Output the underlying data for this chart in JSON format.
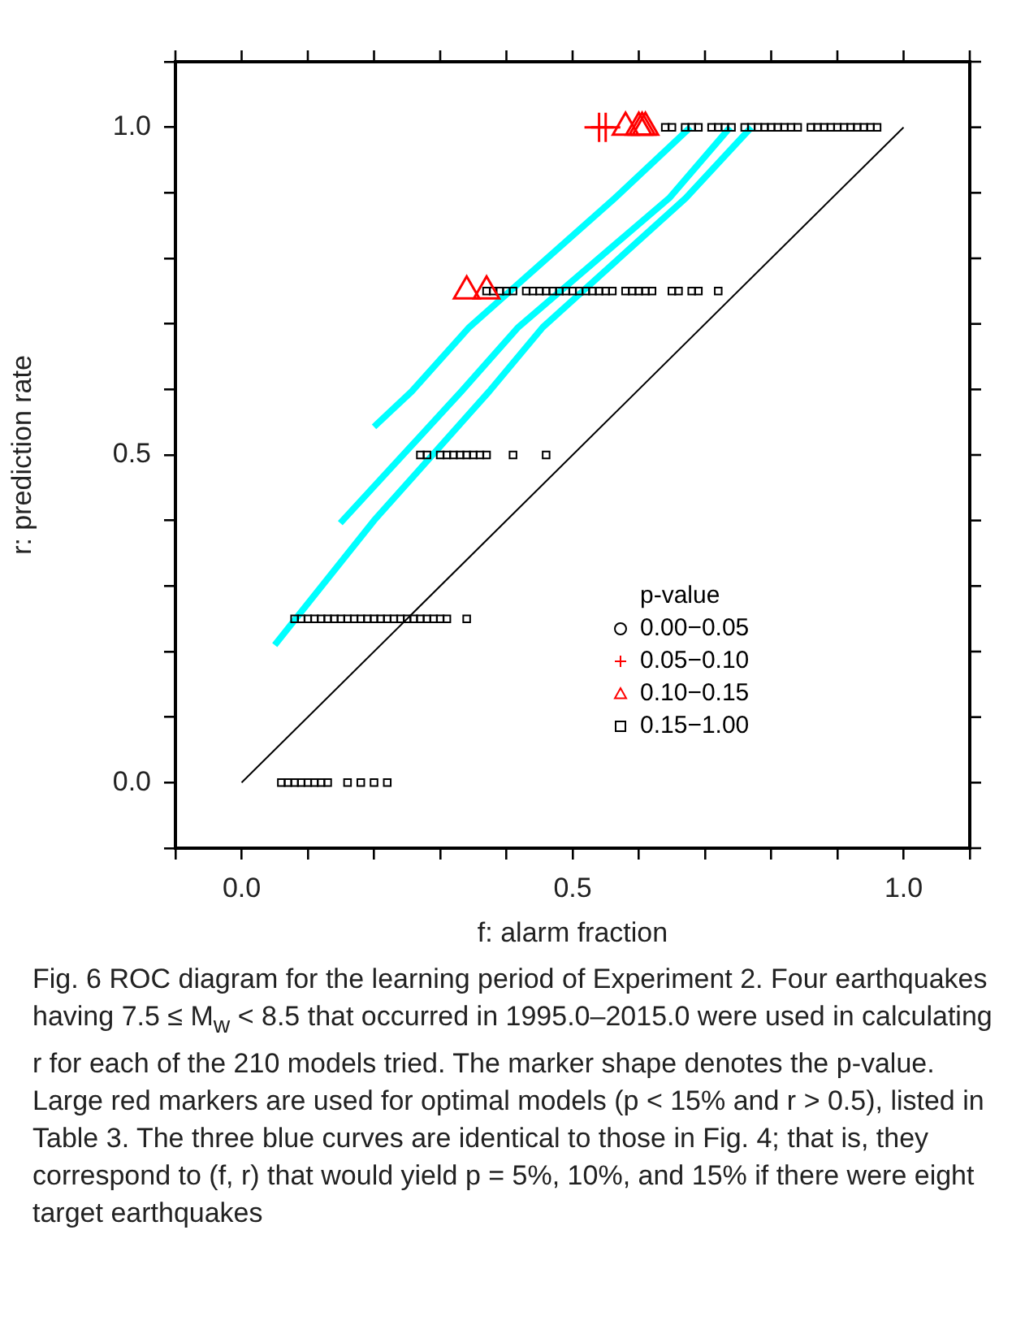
{
  "chart_data": {
    "type": "scatter",
    "xlabel": "f: alarm fraction",
    "ylabel": "r: prediction rate",
    "legend_title": "p-value",
    "legend": "bottom right",
    "xlim": [
      -0.1,
      1.1
    ],
    "ylim": [
      -0.1,
      1.1
    ],
    "xticks": [
      {
        "value": -0.1,
        "label": null
      },
      {
        "value": 0,
        "label": "0.0"
      },
      {
        "value": 0.1,
        "label": null
      },
      {
        "value": 0.2,
        "label": null
      },
      {
        "value": 0.3,
        "label": null
      },
      {
        "value": 0.4,
        "label": null
      },
      0.5,
      {
        "value": 0.6,
        "label": null
      },
      {
        "value": 0.7,
        "label": null
      },
      {
        "value": 0.8,
        "label": null
      },
      {
        "value": 0.9,
        "label": null
      },
      {
        "value": 1,
        "label": "1.0"
      },
      {
        "value": 1.1,
        "label": null
      }
    ],
    "yticks": [
      {
        "value": -0.1,
        "label": null
      },
      {
        "value": 0,
        "label": "0.0"
      },
      {
        "value": 0.1,
        "label": null
      },
      {
        "value": 0.2,
        "label": null
      },
      {
        "value": 0.3,
        "label": null
      },
      {
        "value": 0.4,
        "label": null
      },
      0.5,
      {
        "value": 0.6,
        "label": null
      },
      {
        "value": 0.7,
        "label": null
      },
      {
        "value": 0.8,
        "label": null
      },
      {
        "value": 0.9,
        "label": null
      },
      {
        "value": 1,
        "label": "1.0"
      },
      {
        "value": 1.1,
        "label": null
      }
    ],
    "series": [
      {
        "name": "0.00−0.05",
        "marker": "circle",
        "color": "#000000"
      },
      {
        "name": "0.05−0.10",
        "marker": "cross",
        "color": "#ff0000",
        "x": [
          0.54,
          0.55
        ],
        "values": [
          1.0,
          1.0
        ]
      },
      {
        "name": "0.10−0.15",
        "marker": "triangle",
        "color": "#ff0000",
        "x": [
          0.58,
          0.6,
          0.605,
          0.61,
          0.34,
          0.37
        ],
        "values": [
          1.0,
          1.0,
          1.0,
          1.0,
          0.75,
          0.75
        ]
      },
      {
        "name": "0.15−1.00",
        "marker": "square",
        "color": "#000000",
        "x": [
          0.64,
          0.65,
          0.67,
          0.68,
          0.69,
          0.71,
          0.72,
          0.73,
          0.74,
          0.76,
          0.77,
          0.78,
          0.79,
          0.8,
          0.81,
          0.82,
          0.83,
          0.84,
          0.86,
          0.87,
          0.88,
          0.89,
          0.9,
          0.91,
          0.92,
          0.93,
          0.94,
          0.95,
          0.96,
          0.37,
          0.38,
          0.39,
          0.4,
          0.41,
          0.43,
          0.44,
          0.45,
          0.46,
          0.47,
          0.48,
          0.49,
          0.5,
          0.51,
          0.52,
          0.53,
          0.54,
          0.55,
          0.56,
          0.58,
          0.59,
          0.6,
          0.61,
          0.62,
          0.65,
          0.66,
          0.68,
          0.69,
          0.72,
          0.27,
          0.28,
          0.3,
          0.31,
          0.32,
          0.33,
          0.34,
          0.35,
          0.36,
          0.37,
          0.41,
          0.46,
          0.08,
          0.09,
          0.1,
          0.11,
          0.12,
          0.13,
          0.14,
          0.15,
          0.16,
          0.17,
          0.18,
          0.19,
          0.2,
          0.21,
          0.22,
          0.23,
          0.24,
          0.25,
          0.26,
          0.27,
          0.28,
          0.29,
          0.3,
          0.31,
          0.34,
          0.06,
          0.07,
          0.08,
          0.09,
          0.1,
          0.11,
          0.12,
          0.13,
          0.16,
          0.18,
          0.2,
          0.22
        ],
        "values": [
          1,
          1,
          1,
          1,
          1,
          1,
          1,
          1,
          1,
          1,
          1,
          1,
          1,
          1,
          1,
          1,
          1,
          1,
          1,
          1,
          1,
          1,
          1,
          1,
          1,
          1,
          1,
          1,
          1,
          0.75,
          0.75,
          0.75,
          0.75,
          0.75,
          0.75,
          0.75,
          0.75,
          0.75,
          0.75,
          0.75,
          0.75,
          0.75,
          0.75,
          0.75,
          0.75,
          0.75,
          0.75,
          0.75,
          0.75,
          0.75,
          0.75,
          0.75,
          0.75,
          0.75,
          0.75,
          0.75,
          0.75,
          0.75,
          0.5,
          0.5,
          0.5,
          0.5,
          0.5,
          0.5,
          0.5,
          0.5,
          0.5,
          0.5,
          0.5,
          0.5,
          0.25,
          0.25,
          0.25,
          0.25,
          0.25,
          0.25,
          0.25,
          0.25,
          0.25,
          0.25,
          0.25,
          0.25,
          0.25,
          0.25,
          0.25,
          0.25,
          0.25,
          0.25,
          0.25,
          0.25,
          0.25,
          0.25,
          0.25,
          0.25,
          0.25,
          0,
          0,
          0,
          0,
          0,
          0,
          0,
          0,
          0,
          0,
          0,
          0
        ]
      },
      {
        "type": "line",
        "marker": "none",
        "color": "#00ffff",
        "x": [
          0.2,
          0.257,
          0.344,
          0.564,
          0.678
        ],
        "values": [
          0.543,
          0.597,
          0.695,
          0.892,
          1.0
        ]
      },
      {
        "type": "line",
        "marker": "none",
        "color": "#00ffff",
        "x": [
          0.149,
          0.332,
          0.418,
          0.646,
          0.738
        ],
        "values": [
          0.396,
          0.597,
          0.695,
          0.892,
          1.0
        ]
      },
      {
        "type": "line",
        "marker": "none",
        "color": "#00ffff",
        "x": [
          0.05,
          0.2,
          0.374,
          0.455,
          0.671,
          0.77
        ],
        "values": [
          0.21,
          0.4,
          0.597,
          0.695,
          0.892,
          1.0
        ]
      },
      {
        "type": "line",
        "marker": "none",
        "color": "#000000",
        "x": [
          0,
          1
        ],
        "values": [
          0,
          1
        ]
      }
    ],
    "annotations": [
      "Fig. 6 ROC diagram for the learning period of Experiment 2. Four earthquakes having 7.5 ≤ M$_{w}$ < 8.5 that occurred in 1995.0–2015.0 were used in calculating r for each of the 210 models tried. The marker shape denotes the p-value. Large red markers are used for optimal models (p < 15% and r > 0.5), listed in Table 3. The three blue curves are identical to those in Fig. 4; that is, they correspond to (f, r) that would yield p = 5%, 10%, and 15% if there were eight target earthquakes"
    ]
  }
}
